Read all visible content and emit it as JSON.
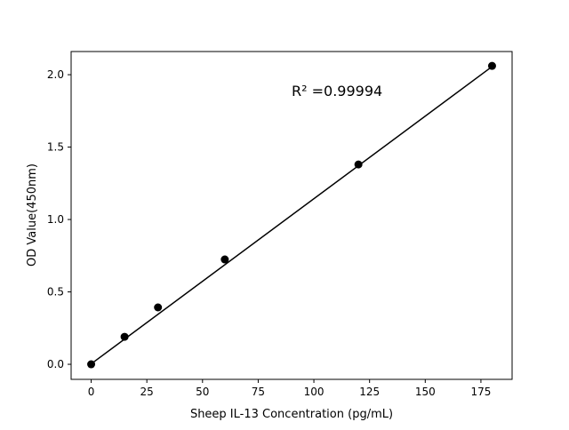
{
  "chart_data": {
    "type": "scatter",
    "title": "",
    "xlabel": "Sheep IL-13 Concentration (pg/mL)",
    "ylabel": "OD Value(450nm)",
    "xlim": [
      -9,
      189
    ],
    "ylim": [
      -0.104,
      2.16
    ],
    "xticks": [
      0,
      25,
      50,
      75,
      100,
      125,
      150,
      175
    ],
    "xtick_labels": [
      "0",
      "25",
      "50",
      "75",
      "100",
      "125",
      "150",
      "175"
    ],
    "yticks": [
      0.0,
      0.5,
      1.0,
      1.5,
      2.0
    ],
    "ytick_labels": [
      "0.0",
      "0.5",
      "1.0",
      "1.5",
      "2.0"
    ],
    "grid": false,
    "series": [
      {
        "x": [
          0,
          15,
          30,
          60,
          120,
          180
        ],
        "y": [
          0.0,
          0.19,
          0.393,
          0.724,
          1.38,
          2.061
        ],
        "color": "#000000",
        "marker": "circle"
      }
    ],
    "fit_line": {
      "x": [
        0,
        180
      ],
      "y": [
        0.003,
        2.056
      ],
      "color": "#000000"
    },
    "annotation": "R² =0.99994"
  }
}
